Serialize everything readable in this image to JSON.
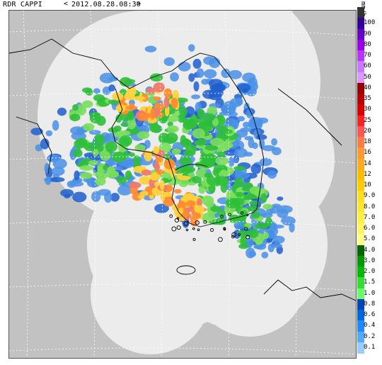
{
  "header": {
    "title": "RDR CAPPI",
    "nav_prev": "<",
    "nav_next": ">",
    "timestamp": "2012.08.28.08:30"
  },
  "legend": {
    "unit": "mm/h",
    "levels": [
      {
        "label": "",
        "color": "#333333"
      },
      {
        "label": "100",
        "color": "#330099"
      },
      {
        "label": "90",
        "color": "#6600cc"
      },
      {
        "label": "80",
        "color": "#9900ee"
      },
      {
        "label": "70",
        "color": "#bb33ff"
      },
      {
        "label": "60",
        "color": "#cc77ff"
      },
      {
        "label": "50",
        "color": "#dd99ff"
      },
      {
        "label": "40",
        "color": "#990000"
      },
      {
        "label": "35",
        "color": "#bb0000"
      },
      {
        "label": "30",
        "color": "#dd0000"
      },
      {
        "label": "25",
        "color": "#ff2020"
      },
      {
        "label": "20",
        "color": "#ff5555"
      },
      {
        "label": "18",
        "color": "#ff7a44"
      },
      {
        "label": "16",
        "color": "#ff9933"
      },
      {
        "label": "14",
        "color": "#ffaa22"
      },
      {
        "label": "12",
        "color": "#ffbb00"
      },
      {
        "label": "10",
        "color": "#ffcc00"
      },
      {
        "label": "9.0",
        "color": "#ffdd22"
      },
      {
        "label": "8.0",
        "color": "#ffe633"
      },
      {
        "label": "7.0",
        "color": "#ffee44"
      },
      {
        "label": "6.0",
        "color": "#fff466"
      },
      {
        "label": "5.0",
        "color": "#ffff88"
      },
      {
        "label": "4.0",
        "color": "#006600"
      },
      {
        "label": "3.0",
        "color": "#009900"
      },
      {
        "label": "2.0",
        "color": "#00bb00"
      },
      {
        "label": "1.5",
        "color": "#33dd33"
      },
      {
        "label": "1.0",
        "color": "#66ff66"
      },
      {
        "label": "0.8",
        "color": "#0044bb"
      },
      {
        "label": "0.6",
        "color": "#0066dd"
      },
      {
        "label": "0.4",
        "color": "#2288ff"
      },
      {
        "label": "0.2",
        "color": "#55aaff"
      },
      {
        "label": "0.1",
        "color": "#99ccff"
      }
    ]
  },
  "map": {
    "background_color": "#c2c2c2",
    "coverage_color": "#ececec",
    "coast_color": "#000000",
    "grid_color": "#ffffff",
    "rain_colors": {
      "light_blue": "#4a90e8",
      "deep_blue": "#1f5fd0",
      "green": "#2fbf3a",
      "light_green": "#7adf5a",
      "yellow": "#ffd23a",
      "orange": "#ff8c30",
      "salmon": "#f07a6a"
    }
  }
}
